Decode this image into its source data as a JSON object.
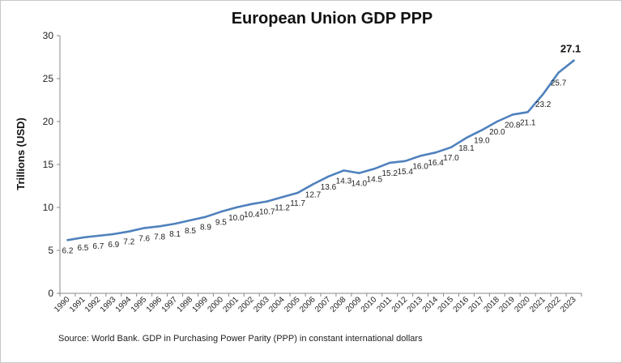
{
  "chart_data": {
    "type": "line",
    "title": "European Union GDP PPP",
    "ylabel": "Trillions (USD)",
    "xlabel": "",
    "ylim": [
      0,
      30
    ],
    "yticks": [
      0,
      5,
      10,
      15,
      20,
      25,
      30
    ],
    "grid": false,
    "legend": "none",
    "color": "#4f81bd",
    "categories": [
      "1990",
      "1991",
      "1992",
      "1993",
      "1994",
      "1995",
      "1996",
      "1997",
      "1998",
      "1999",
      "2000",
      "2001",
      "2002",
      "2003",
      "2004",
      "2005",
      "2006",
      "2007",
      "2008",
      "2009",
      "2010",
      "2011",
      "2012",
      "2013",
      "2014",
      "2015",
      "2016",
      "2017",
      "2018",
      "2019",
      "2020",
      "2021",
      "2022",
      "2023"
    ],
    "values": [
      6.2,
      6.5,
      6.7,
      6.9,
      7.2,
      7.6,
      7.8,
      8.1,
      8.5,
      8.9,
      9.5,
      10.0,
      10.4,
      10.7,
      11.2,
      11.7,
      12.7,
      13.6,
      14.3,
      14.0,
      14.5,
      15.2,
      15.4,
      16.0,
      16.4,
      17.0,
      18.1,
      19.0,
      20.0,
      20.8,
      21.1,
      23.2,
      25.7,
      27.1
    ],
    "data_labels": [
      "6.2",
      "6.5",
      "6.7",
      "6.9",
      "7.2",
      "7.6",
      "7.8",
      "8.1",
      "8.5",
      "8.9",
      "9.5",
      "10.0",
      "10.4",
      "10.7",
      "11.2",
      "11.7",
      "12.7",
      "13.6",
      "14.3",
      "14.0",
      "14.5",
      "15.2",
      "15.4",
      "16.0",
      "16.4",
      "17.0",
      "18.1",
      "19.0",
      "20.0",
      "20.8",
      "21.1",
      "23.2",
      "25.7",
      "27.1"
    ],
    "source": "Source:  World Bank.  GDP  in  Purchasing Power Parity (PPP)  in constant international dollars"
  }
}
